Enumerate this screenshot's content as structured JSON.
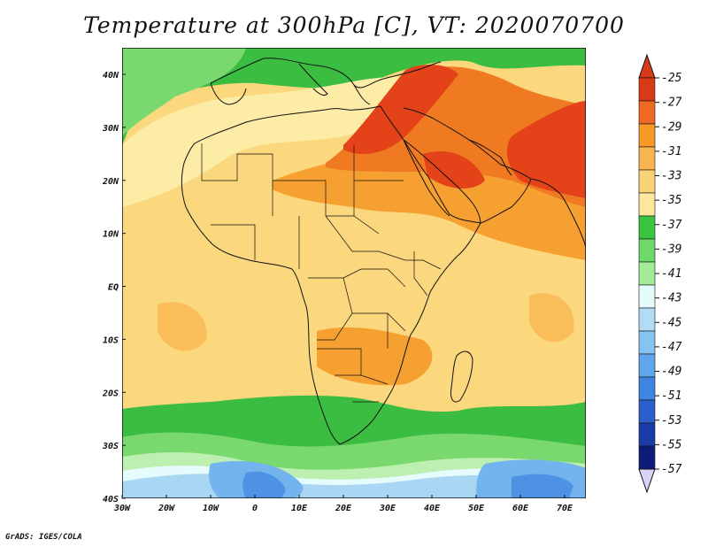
{
  "title": "Temperature at 300hPa [C], VT: 2020070700",
  "credit": "GrADS: IGES/COLA",
  "x_axis": {
    "ticks": [
      "30W",
      "20W",
      "10W",
      "0",
      "10E",
      "20E",
      "30E",
      "40E",
      "50E",
      "60E",
      "70E"
    ]
  },
  "y_axis": {
    "ticks": [
      "40N",
      "30N",
      "20N",
      "10N",
      "EQ",
      "10S",
      "20S",
      "30S",
      "40S"
    ]
  },
  "colorbar": {
    "levels": [
      "-25",
      "-27",
      "-29",
      "-31",
      "-33",
      "-35",
      "-37",
      "-39",
      "-41",
      "-43",
      "-45",
      "-47",
      "-49",
      "-51",
      "-53",
      "-55",
      "-57"
    ],
    "colors": [
      "#d63a16",
      "#ee6a24",
      "#f79a26",
      "#f9b550",
      "#fad278",
      "#fde8a0",
      "#3bc43f",
      "#6dd96a",
      "#a4eb98",
      "#e6fbfb",
      "#b3dcf4",
      "#85c3f1",
      "#5fa6ec",
      "#3f86e2",
      "#2a5fcc",
      "#1a3ca8",
      "#0c1c78"
    ],
    "top_arrow_color": "#d63a16",
    "bottom_arrow_color": "#d8d4f6"
  },
  "field_colors": {
    "hot": "#e4431a",
    "warm": "#f07a22",
    "orange": "#f7a032",
    "light_orange": "#f9bd5a",
    "pale": "#fbd77e",
    "very_pale": "#fdeca6",
    "green": "#3bbd42",
    "light_green": "#79d96e",
    "pale_green": "#bdf0b0",
    "cyan": "#e6fbfb",
    "blue1": "#a8d6f3",
    "blue2": "#74b4ee",
    "blue3": "#4e92e4",
    "blue4": "#2d6bd4"
  },
  "coastline_color": "#111111"
}
